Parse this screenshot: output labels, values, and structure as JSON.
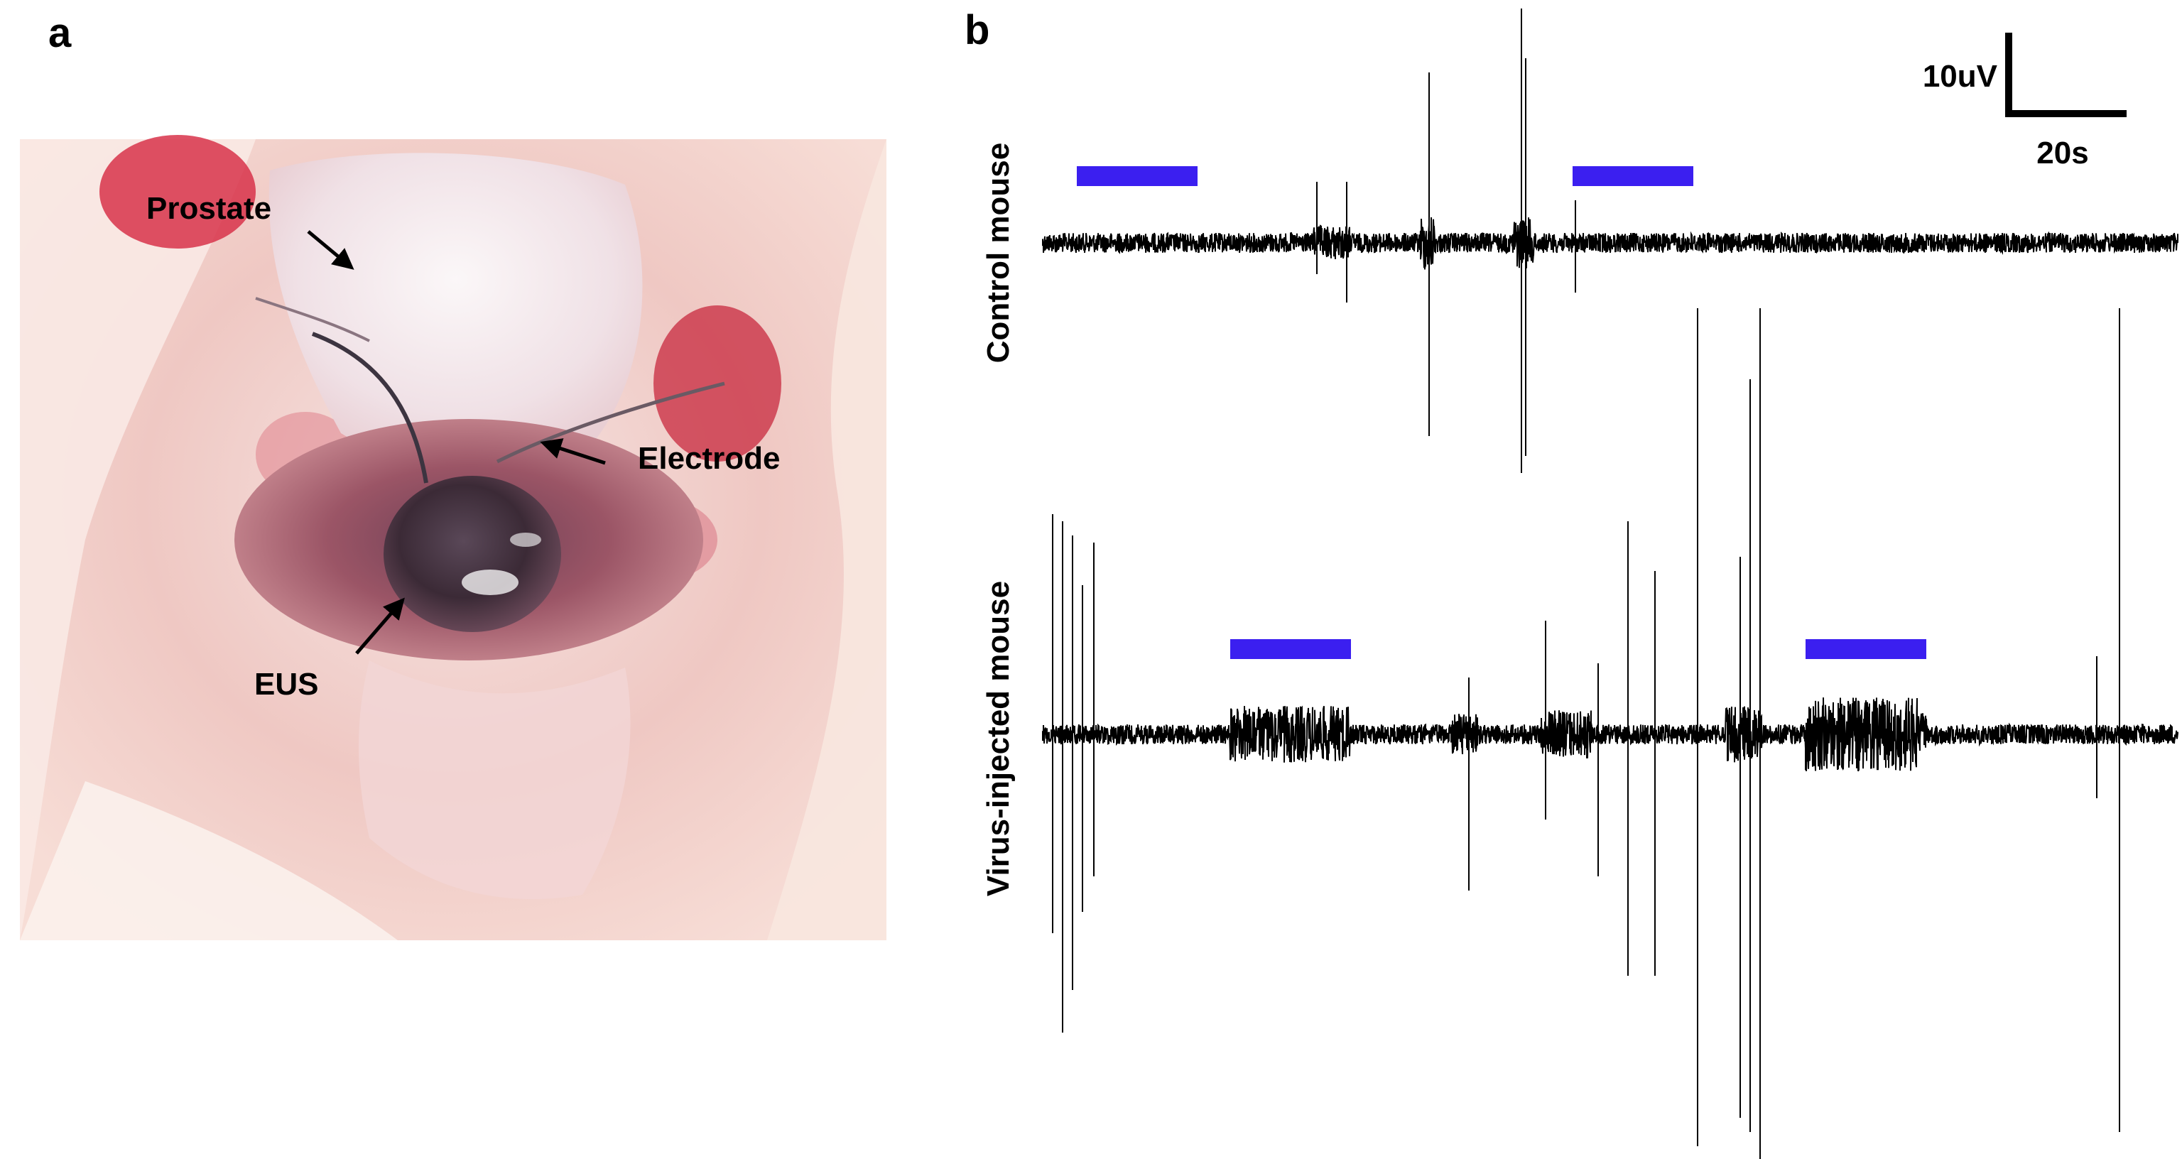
{
  "figure": {
    "panel_a": {
      "letter": "a",
      "labels": {
        "prostate": "Prostate",
        "electrode": "Electrode",
        "eus": "EUS"
      }
    },
    "panel_b": {
      "letter": "b",
      "scale_bar": {
        "vertical_label": "10uV",
        "horizontal_label": "20s"
      },
      "traces": [
        {
          "label": "Control mouse"
        },
        {
          "label": "Virus-injected mouse"
        }
      ]
    }
  },
  "colors": {
    "trace": "#000000",
    "stimulus_bar": "#3b1ff0"
  }
}
